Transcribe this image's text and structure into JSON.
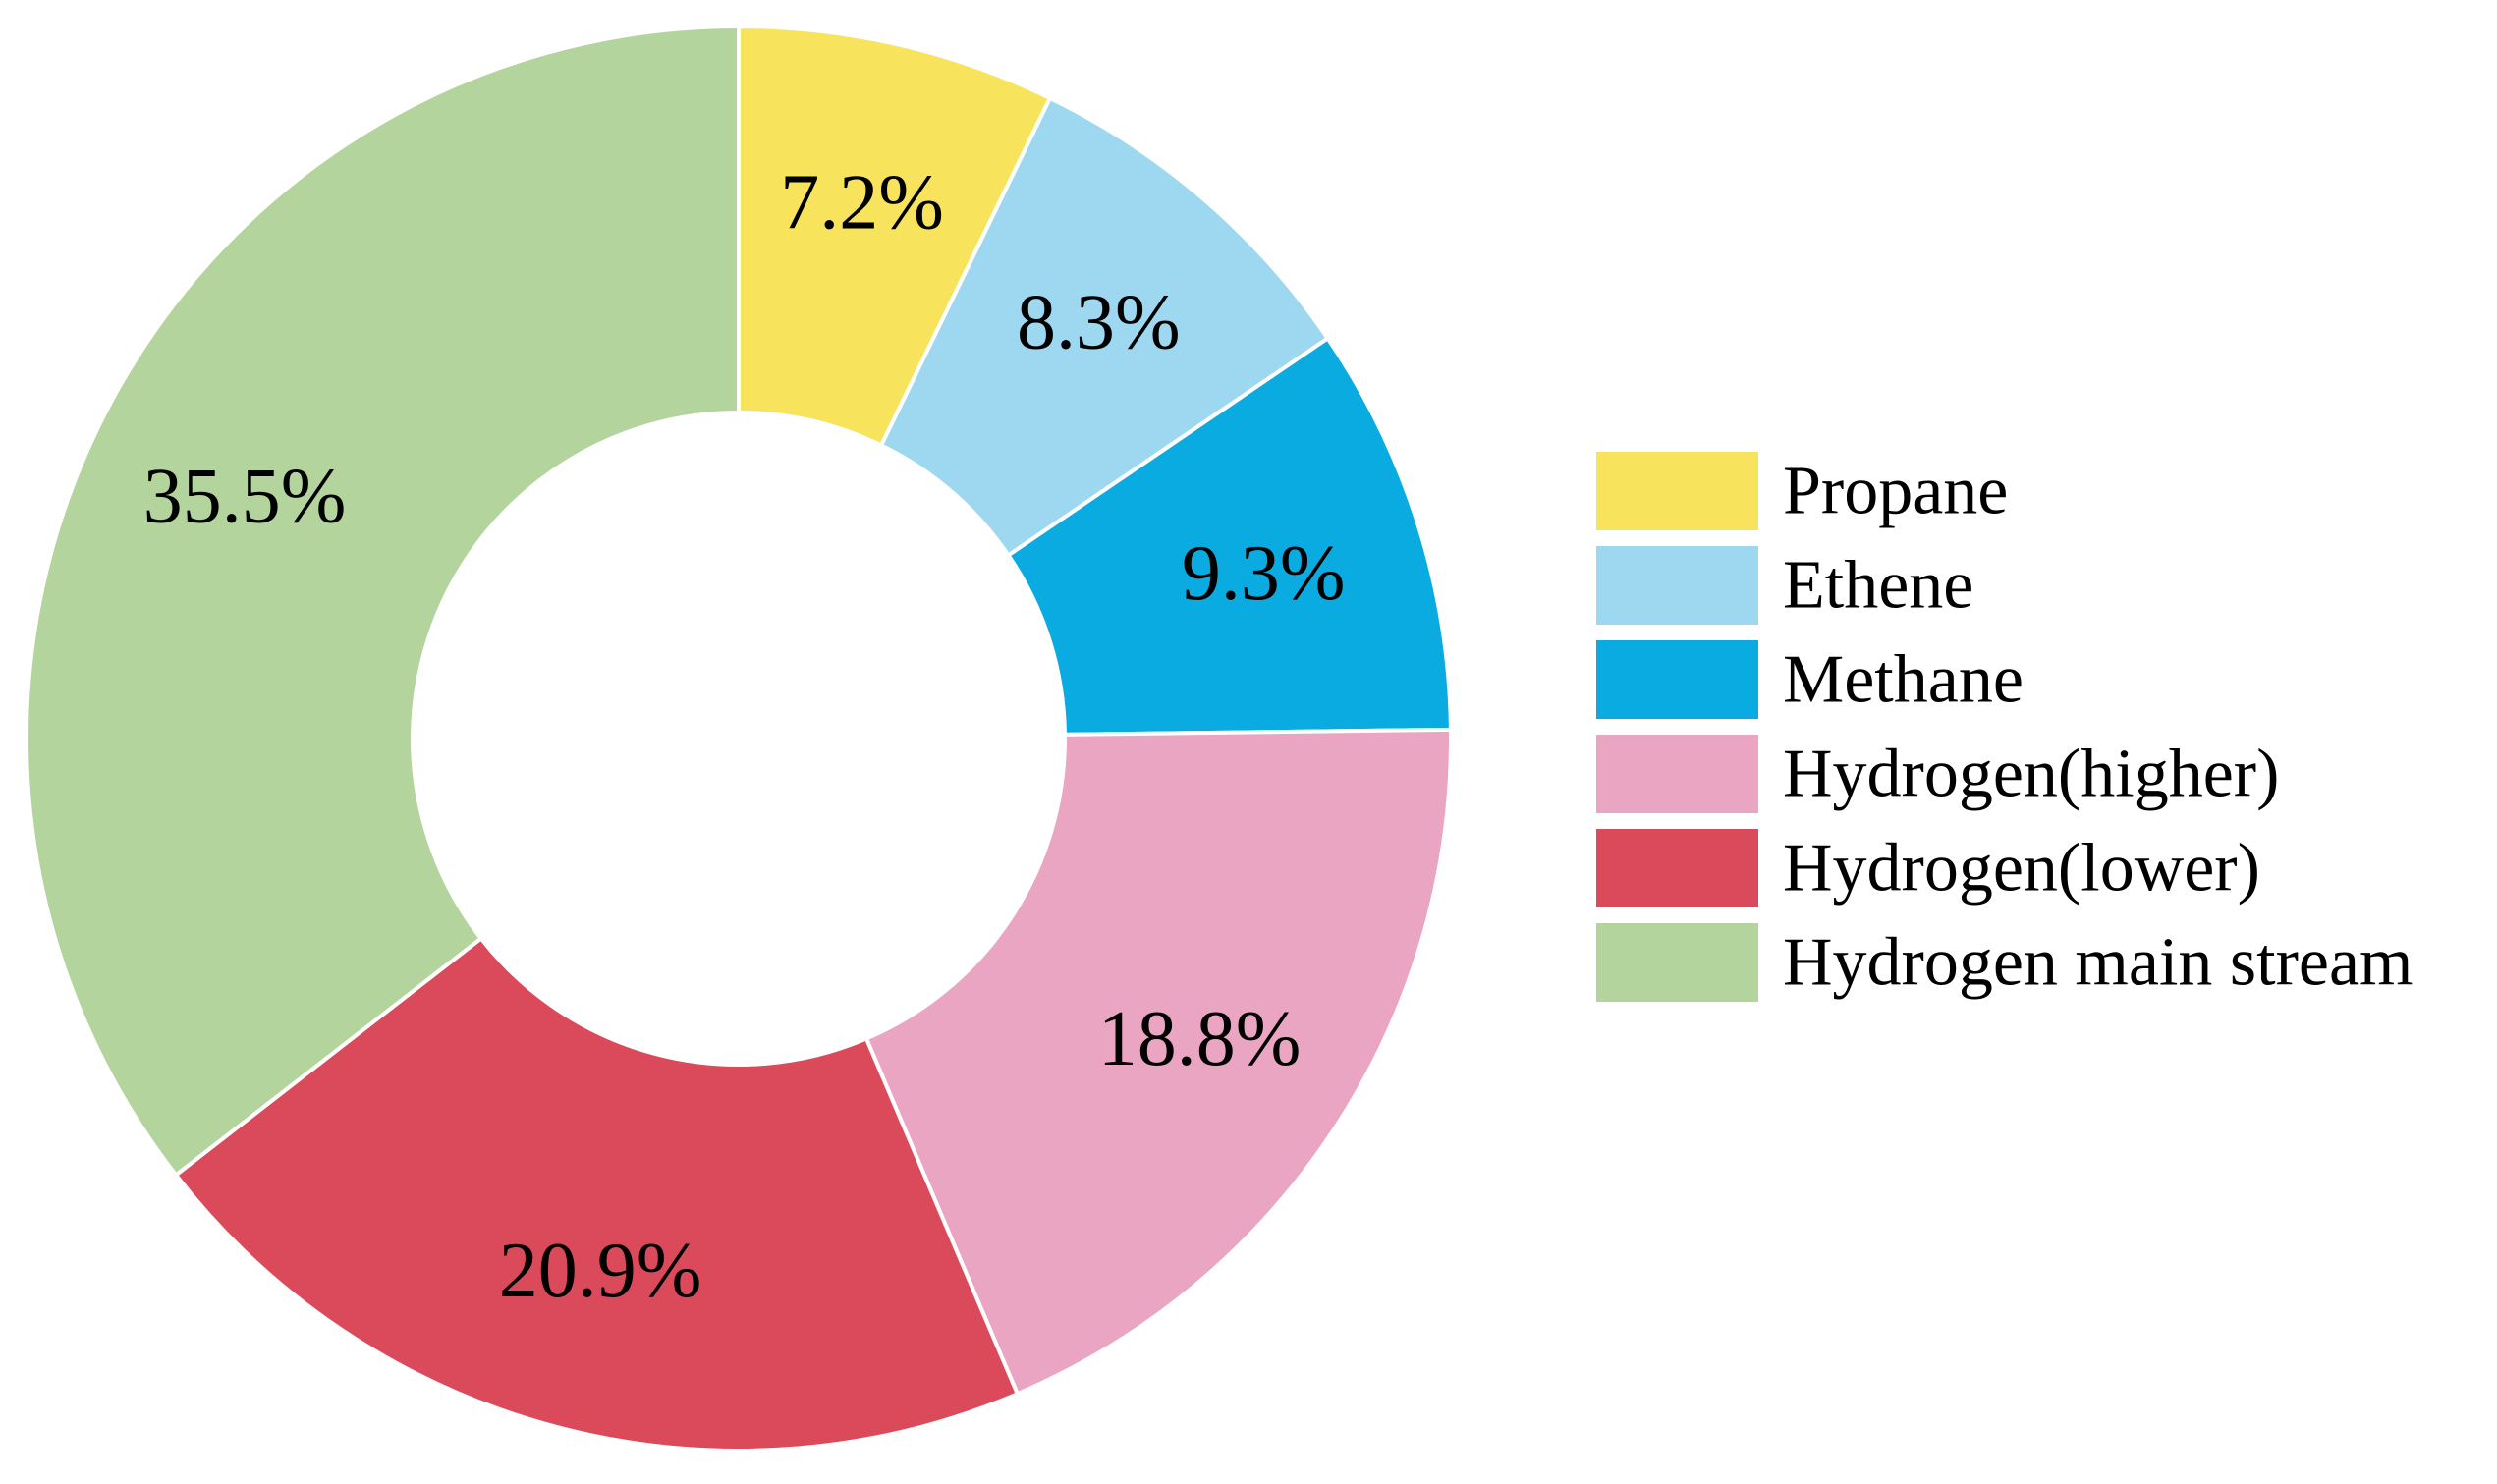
{
  "chart_data": {
    "type": "pie",
    "donut": true,
    "start_angle": "12 o'clock",
    "direction": "clockwise",
    "legend_position": "right",
    "slices": [
      {
        "name": "Propane",
        "value": 7.2,
        "label": "7.2%",
        "color": "#F8E45C"
      },
      {
        "name": "Ethene",
        "value": 8.3,
        "label": "8.3%",
        "color": "#9ED7F0"
      },
      {
        "name": "Methane",
        "value": 9.3,
        "label": "9.3%",
        "color": "#0AABE1"
      },
      {
        "name": "Hydrogen(higher)",
        "value": 18.8,
        "label": "18.8%",
        "color": "#E9A5C1"
      },
      {
        "name": "Hydrogen(lower)",
        "value": 20.9,
        "label": "20.9%",
        "color": "#DB4A5A"
      },
      {
        "name": "Hydrogen main stream",
        "value": 35.5,
        "label": "35.5%",
        "color": "#B4D49D"
      }
    ]
  }
}
